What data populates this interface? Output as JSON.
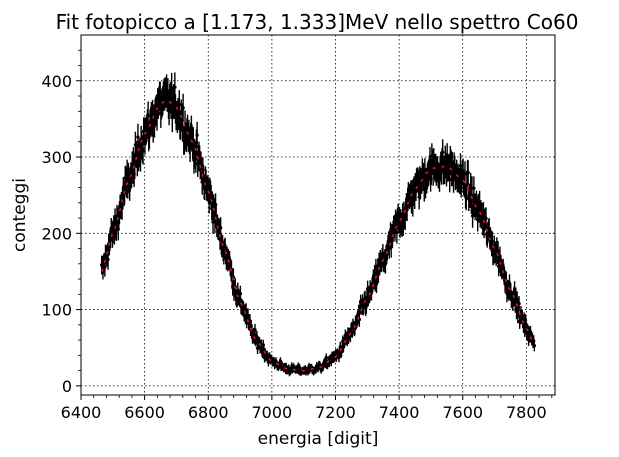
{
  "chart_data": {
    "type": "scatter",
    "title": "Fit fotopicco a [1.173, 1.333]MeV nello spettro Co60",
    "xlabel": "energia [digit]",
    "ylabel": "conteggi",
    "xlim": [
      6400,
      7890
    ],
    "ylim": [
      -12,
      460
    ],
    "xticks": [
      6400,
      6600,
      6800,
      7000,
      7200,
      7400,
      7600,
      7800
    ],
    "yticks": [
      0,
      100,
      200,
      300,
      400
    ],
    "grid": true,
    "grid_style": "dotted",
    "x_range": [
      6465,
      7825
    ],
    "series": [
      {
        "style": "points with vertical error bars",
        "color": "#000000",
        "x": [
          6465,
          6500,
          6550,
          6600,
          6650,
          6670,
          6700,
          6750,
          6800,
          6850,
          6900,
          6950,
          7000,
          7050,
          7100,
          7150,
          7200,
          7250,
          7300,
          7350,
          7400,
          7450,
          7500,
          7550,
          7600,
          7650,
          7700,
          7750,
          7800,
          7825
        ],
        "y": [
          150,
          200,
          270,
          330,
          370,
          375,
          365,
          320,
          255,
          180,
          110,
          60,
          32,
          22,
          20,
          24,
          38,
          70,
          115,
          165,
          215,
          258,
          285,
          288,
          270,
          230,
          180,
          125,
          75,
          55
        ]
      },
      {
        "style": "fit curve",
        "color": "#e8102a",
        "x": [
          6465,
          6500,
          6550,
          6600,
          6650,
          6670,
          6700,
          6750,
          6800,
          6850,
          6900,
          6950,
          7000,
          7050,
          7100,
          7150,
          7200,
          7250,
          7300,
          7350,
          7400,
          7450,
          7500,
          7550,
          7600,
          7650,
          7700,
          7750,
          7800,
          7825
        ],
        "y": [
          150,
          200,
          270,
          330,
          370,
          375,
          365,
          320,
          255,
          180,
          110,
          60,
          32,
          22,
          20,
          24,
          38,
          70,
          115,
          165,
          215,
          258,
          285,
          288,
          270,
          230,
          180,
          125,
          75,
          55
        ]
      }
    ]
  }
}
